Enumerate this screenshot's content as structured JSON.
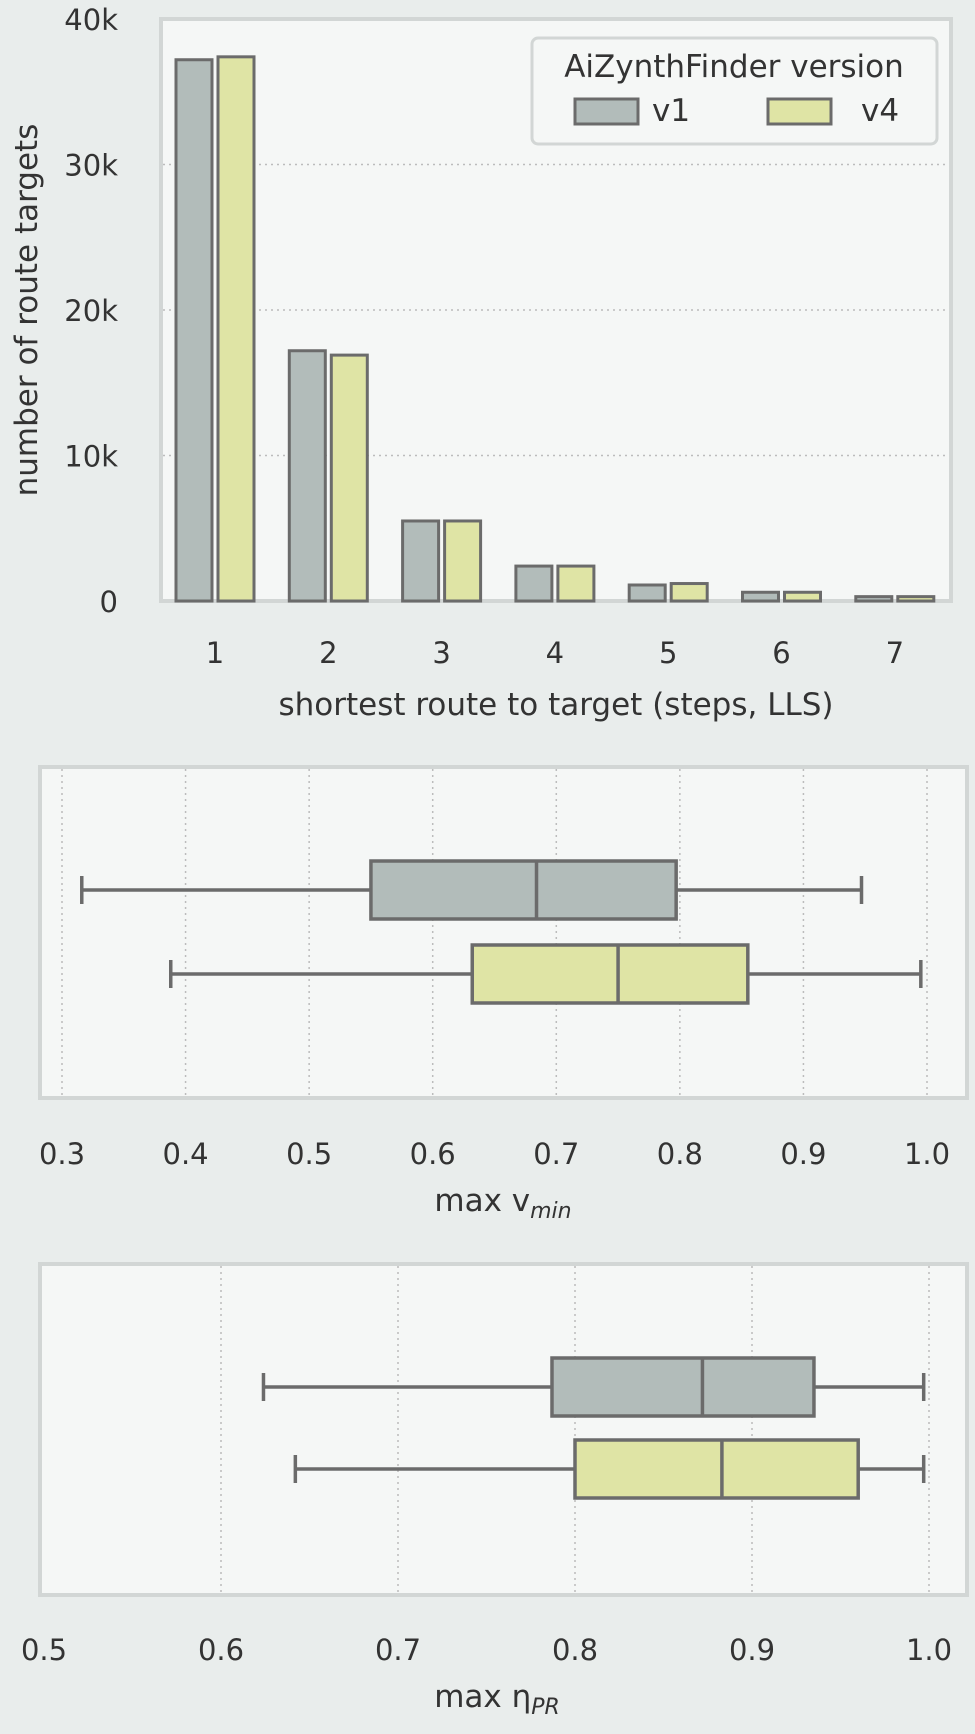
{
  "chart_data": [
    {
      "type": "bar",
      "categories": [
        "1",
        "2",
        "3",
        "4",
        "5",
        "6",
        "7"
      ],
      "series": [
        {
          "name": "v1",
          "values": [
            37200,
            17200,
            5500,
            2400,
            1100,
            600,
            300
          ],
          "color": "#b2bcba"
        },
        {
          "name": "v4",
          "values": [
            37400,
            16900,
            5500,
            2400,
            1200,
            600,
            300
          ],
          "color": "#dfe4a5"
        }
      ],
      "xlabel": "shortest route to target (steps, LLS)",
      "ylabel": "number of route targets",
      "ylim": [
        0,
        40000
      ],
      "yticks": [
        0,
        10000,
        20000,
        30000,
        40000
      ],
      "ytick_labels": [
        "0",
        "10k",
        "20k",
        "30k",
        "40k"
      ],
      "grid": "horizontal dotted",
      "legend": {
        "title": "AiZynthFinder version",
        "placement": "top-right",
        "entries": [
          "v1",
          "v4"
        ]
      }
    },
    {
      "type": "boxplot",
      "orientation": "horizontal",
      "xlabel_main": "max v",
      "xlabel_sub": "min",
      "xlim": [
        0.3,
        1.0
      ],
      "xticks": [
        0.3,
        0.4,
        0.5,
        0.6,
        0.7,
        0.8,
        0.9,
        1.0
      ],
      "xtick_labels": [
        "0.3",
        "0.4",
        "0.5",
        "0.6",
        "0.7",
        "0.8",
        "0.9",
        "1.0"
      ],
      "grid": "vertical dotted",
      "boxes": [
        {
          "series": "v1",
          "color": "#b2bcba",
          "whisker_low": 0.316,
          "q1": 0.55,
          "median": 0.684,
          "q3": 0.797,
          "whisker_high": 0.947
        },
        {
          "series": "v4",
          "color": "#dfe4a5",
          "whisker_low": 0.388,
          "q1": 0.632,
          "median": 0.75,
          "q3": 0.855,
          "whisker_high": 0.995
        }
      ]
    },
    {
      "type": "boxplot",
      "orientation": "horizontal",
      "xlabel_main": "max η",
      "xlabel_sub": "PR",
      "xlim": [
        0.5,
        1.0
      ],
      "xticks": [
        0.5,
        0.6,
        0.7,
        0.8,
        0.9,
        1.0
      ],
      "xtick_labels": [
        "0.5",
        "0.6",
        "0.7",
        "0.8",
        "0.9",
        "1.0"
      ],
      "grid": "vertical dotted",
      "boxes": [
        {
          "series": "v1",
          "color": "#b2bcba",
          "whisker_low": 0.624,
          "q1": 0.787,
          "median": 0.872,
          "q3": 0.935,
          "whisker_high": 0.997
        },
        {
          "series": "v4",
          "color": "#dfe4a5",
          "whisker_low": 0.642,
          "q1": 0.8,
          "median": 0.883,
          "q3": 0.96,
          "whisker_high": 0.997
        }
      ]
    }
  ],
  "colors": {
    "panel_bg": "#f5f7f6",
    "figure_bg": "#e9edec",
    "frame": "#d2d6d5",
    "edge": "#6b6b6b",
    "text": "#333333",
    "grid": "#bcbcbc"
  }
}
